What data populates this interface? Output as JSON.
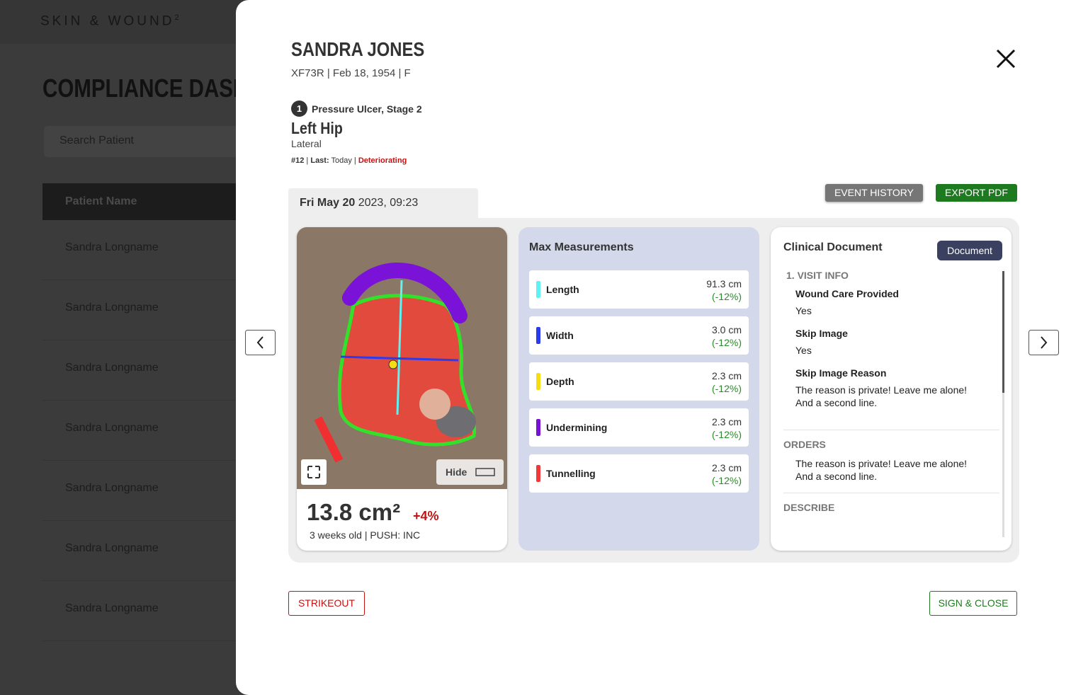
{
  "background": {
    "brand": "SKIN & WOUND",
    "brand_sup": "2",
    "title": "COMPLIANCE DASHBOARD",
    "search_placeholder": "Search Patient",
    "table_header": "Patient Name",
    "rows": [
      "Sandra Longname",
      "Sandra Longname",
      "Sandra Longname",
      "Sandra Longname",
      "Sandra Longname",
      "Sandra Longname",
      "Sandra Longname"
    ]
  },
  "modal": {
    "patient_name": "SANDRA JONES",
    "patient_info": "XF73R | Feb 18, 1954 | F",
    "wound_number": "1",
    "wound_type": "Pressure Ulcer, Stage 2",
    "location": "Left Hip",
    "sublocation": "Lateral",
    "meta": {
      "number": "#12",
      "last_label": "Last:",
      "last_value": "Today",
      "status": "Deteriorating"
    },
    "date": "Fri May 20",
    "time": "2023, 09:23",
    "buttons": {
      "event_history": "EVENT HISTORY",
      "export_pdf": "EXPORT PDF",
      "strikeout": "STRIKEOUT",
      "sign_close": "SIGN & CLOSE"
    },
    "image": {
      "hide": "Hide"
    },
    "area": {
      "value": "13.8 cm²",
      "change": "+4%",
      "details": "3 weeks old | PUSH: INC"
    },
    "measurements": {
      "title": "Max Measurements",
      "items": [
        {
          "label": "Length",
          "value": "91.3 cm",
          "change": "(-12%)",
          "color": "#5ef2f2"
        },
        {
          "label": "Width",
          "value": "3.0 cm",
          "change": "(-12%)",
          "color": "#2a3cf0"
        },
        {
          "label": "Depth",
          "value": "2.3 cm",
          "change": "(-12%)",
          "color": "#f5dd12"
        },
        {
          "label": "Undermining",
          "value": "2.3 cm",
          "change": "(-12%)",
          "color": "#7a12d6"
        },
        {
          "label": "Tunnelling",
          "value": "2.3 cm",
          "change": "(-12%)",
          "color": "#f23838"
        }
      ]
    },
    "clinical": {
      "title": "Clinical Document",
      "button": "Document",
      "sections": [
        {
          "heading": "1. VISIT INFO",
          "fields": [
            {
              "label": "Wound Care Provided",
              "value": "Yes"
            },
            {
              "label": "Skip Image",
              "value": "Yes"
            },
            {
              "label": "Skip Image Reason",
              "value": "The reason is private! Leave me alone!\nAnd a second line."
            }
          ]
        },
        {
          "heading": "ORDERS",
          "text": "The reason is private! Leave me alone!\nAnd a second line."
        },
        {
          "heading": "DESCRIBE"
        }
      ]
    }
  }
}
